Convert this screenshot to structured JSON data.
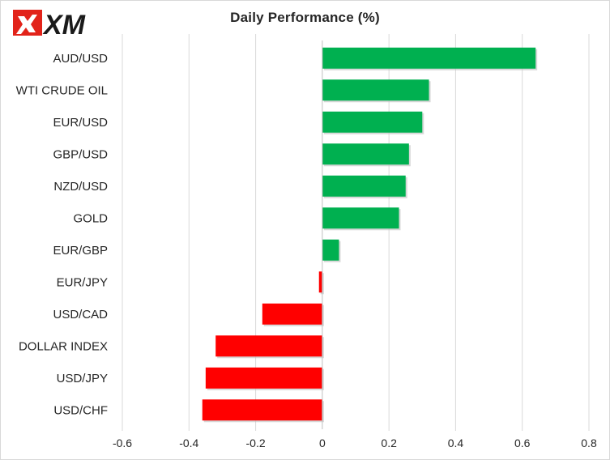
{
  "brand": {
    "logo_text": "XM"
  },
  "chart_data": {
    "type": "bar",
    "orientation": "horizontal",
    "title": "Daily Performance (%)",
    "xlabel": "",
    "ylabel": "",
    "categories": [
      "AUD/USD",
      "WTI CRUDE OIL",
      "EUR/USD",
      "GBP/USD",
      "NZD/USD",
      "GOLD",
      "EUR/GBP",
      "EUR/JPY",
      "USD/CAD",
      "DOLLAR INDEX",
      "USD/JPY",
      "USD/CHF"
    ],
    "values": [
      0.64,
      0.32,
      0.3,
      0.26,
      0.25,
      0.23,
      0.05,
      -0.01,
      -0.18,
      -0.32,
      -0.35,
      -0.36
    ],
    "xlim": [
      -0.6,
      0.8
    ],
    "xticks": [
      "-0.6",
      "-0.4",
      "-0.2",
      "0",
      "0.2",
      "0.4",
      "0.6",
      "0.8"
    ],
    "grid": "vertical",
    "legend": "none",
    "colors": {
      "positive": "#00b050",
      "negative": "#ff0000",
      "grid": "#d9d9d9",
      "axis": "#bfbfbf"
    }
  }
}
